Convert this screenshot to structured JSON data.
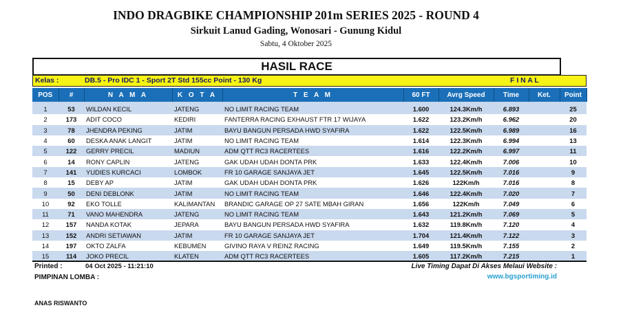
{
  "header": {
    "title": "INDO DRAGBIKE CHAMPIONSHIP 201m SERIES 2025 - ROUND 4",
    "venue": "Sirkuit Lanud Gading, Wonosari - Gunung Kidul",
    "date": "Sabtu, 4 Oktober 2025"
  },
  "banner": "HASIL RACE",
  "kelas": {
    "label": "Kelas :",
    "value": "DB.5 - Pro IDC 1 - Sport 2T Std 155cc  Point  - 130 Kg",
    "stage": "F I N A L"
  },
  "columns": [
    "POS",
    "#",
    "N A M A",
    "K O T A",
    "T E A M",
    "60 FT",
    "Avrg Speed",
    "Time",
    "Ket.",
    "Point"
  ],
  "rows": [
    [
      "1",
      "53",
      "WILDAN KECIL",
      "JATENG",
      "NO LIMIT RACING TEAM",
      "1.600",
      "124.3Km/h",
      "6.893",
      "",
      "25"
    ],
    [
      "2",
      "173",
      "ADIT COCO",
      "KEDIRI",
      "FANTERRA RACING EXHAUST FTR 17 WIJAYA",
      "1.622",
      "123.2Km/h",
      "6.962",
      "",
      "20"
    ],
    [
      "3",
      "78",
      "JHENDRA PEKING",
      "JATIM",
      "BAYU BANGUN PERSADA HWD SYAFIRA",
      "1.622",
      "122.5Km/h",
      "6.989",
      "",
      "16"
    ],
    [
      "4",
      "60",
      "DESKA ANAK LANGIT",
      "JATIM",
      "NO LIMIT RACING TEAM",
      "1.614",
      "122.3Km/h",
      "6.994",
      "",
      "13"
    ],
    [
      "5",
      "122",
      "GERRY PRECIL",
      "MADIUN",
      "ADM QTT RC3 RACERTEES",
      "1.616",
      "122.2Km/h",
      "6.997",
      "",
      "11"
    ],
    [
      "6",
      "14",
      "RONY CAPLIN",
      "JATENG",
      "GAK UDAH UDAH DONTA PRK",
      "1.633",
      "122.4Km/h",
      "7.006",
      "",
      "10"
    ],
    [
      "7",
      "141",
      "YUDIES KURCACI",
      "LOMBOK",
      "FR 10 GARAGE SANJAYA JET",
      "1.645",
      "122.5Km/h",
      "7.016",
      "",
      "9"
    ],
    [
      "8",
      "15",
      "DEBY AP",
      "JATIM",
      "GAK UDAH UDAH DONTA PRK",
      "1.626",
      "122Km/h",
      "7.016",
      "",
      "8"
    ],
    [
      "9",
      "50",
      "DENI DEBLONK",
      "JATIM",
      "NO LIMIT RACING TEAM",
      "1.646",
      "122.4Km/h",
      "7.020",
      "",
      "7"
    ],
    [
      "10",
      "92",
      "EKO TOLLE",
      "KALIMANTAN",
      "BRANDIC GARAGE OP 27 SATE MBAH GIRAN",
      "1.656",
      "122Km/h",
      "7.049",
      "",
      "6"
    ],
    [
      "11",
      "71",
      "VANO MAHENDRA",
      "JATENG",
      "NO LIMIT RACING TEAM",
      "1.643",
      "121.2Km/h",
      "7.069",
      "",
      "5"
    ],
    [
      "12",
      "157",
      "NANDA KOTAK",
      "JEPARA",
      "BAYU BANGUN PERSADA HWD SYAFIRA",
      "1.632",
      "119.8Km/h",
      "7.120",
      "",
      "4"
    ],
    [
      "13",
      "152",
      "ANDRI SETIAWAN",
      "JATIM",
      "FR 10 GARAGE SANJAYA JET",
      "1.704",
      "121.4Km/h",
      "7.122",
      "",
      "3"
    ],
    [
      "14",
      "197",
      "OKTO ZALFA",
      "KEBUMEN",
      "GIVINO RAYA V REINZ RACING",
      "1.649",
      "119.5Km/h",
      "7.155",
      "",
      "2"
    ],
    [
      "15",
      "114",
      "JOKO PRECIL",
      "KLATEN",
      "ADM QTT RC3 RACERTEES",
      "1.605",
      "117.2Km/h",
      "7.215",
      "",
      "1"
    ]
  ],
  "footer": {
    "printed_label": "Printed :",
    "printed_value": "04 Oct 2025 - 11:21:10",
    "pimpinan": "PIMPINAN LOMBA :",
    "signer": "ANAS RISWANTO",
    "live_text": "Live Timing Dapat Di Akses Melaui Website :",
    "website": "www.bgsportiming.id"
  },
  "colors": {
    "header_blue": "#1a6fb8",
    "kelas_yellow": "#f7f314",
    "row_stripe": "#c9d9ee",
    "link": "#2a9fd0"
  }
}
